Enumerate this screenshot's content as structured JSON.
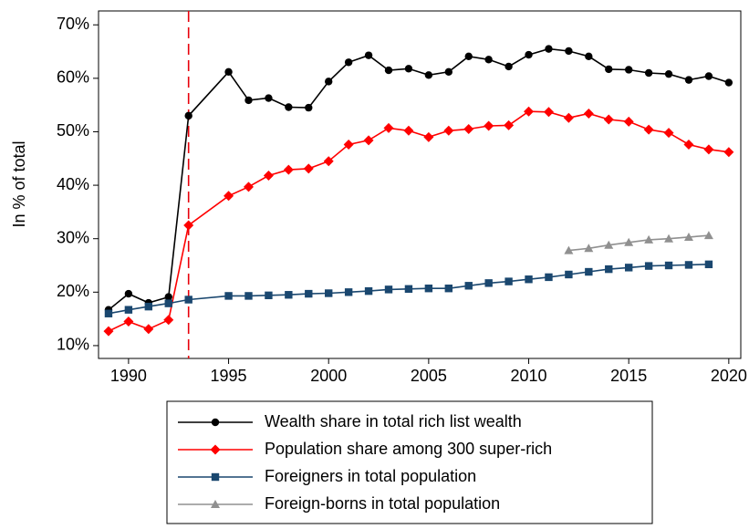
{
  "chart_data": {
    "type": "line",
    "y_label": "In % of total",
    "xlim": [
      1988.5,
      2020.6
    ],
    "xticks": [
      1990,
      1995,
      2000,
      2005,
      2010,
      2015,
      2020
    ],
    "ylim": [
      7.6,
      72.6
    ],
    "yticks": [
      {
        "value": 10,
        "label": "10%"
      },
      {
        "value": 20,
        "label": "20%"
      },
      {
        "value": 30,
        "label": "30%"
      },
      {
        "value": 40,
        "label": "40%"
      },
      {
        "value": 50,
        "label": "50%"
      },
      {
        "value": 60,
        "label": "60%"
      },
      {
        "value": 70,
        "label": "70%"
      }
    ],
    "vline": {
      "x": 1993,
      "color": "#e8000b"
    },
    "series": [
      {
        "name": "Wealth share in total rich list wealth",
        "color": "#000000",
        "marker": "circle",
        "x": [
          1989,
          1990,
          1991,
          1992,
          1993,
          1995,
          1996,
          1997,
          1998,
          1999,
          2000,
          2001,
          2002,
          2003,
          2004,
          2005,
          2006,
          2007,
          2008,
          2009,
          2010,
          2011,
          2012,
          2013,
          2014,
          2015,
          2016,
          2017,
          2018,
          2019,
          2020
        ],
        "values": [
          16.7,
          19.7,
          18.0,
          19.1,
          53.0,
          61.2,
          55.9,
          56.3,
          54.6,
          54.5,
          59.4,
          63.0,
          64.3,
          61.5,
          61.8,
          60.6,
          61.2,
          64.1,
          63.5,
          62.2,
          64.4,
          65.5,
          65.1,
          64.1,
          61.7,
          61.6,
          61.0,
          60.8,
          59.7,
          60.4,
          59.2
        ]
      },
      {
        "name": "Population share among 300 super-rich",
        "color": "#ff0000",
        "marker": "diamond",
        "x": [
          1989,
          1990,
          1991,
          1992,
          1993,
          1995,
          1996,
          1997,
          1998,
          1999,
          2000,
          2001,
          2002,
          2003,
          2004,
          2005,
          2006,
          2007,
          2008,
          2009,
          2010,
          2011,
          2012,
          2013,
          2014,
          2015,
          2016,
          2017,
          2018,
          2019,
          2020
        ],
        "values": [
          12.7,
          14.5,
          13.1,
          14.8,
          32.5,
          38.0,
          39.7,
          41.8,
          42.9,
          43.1,
          44.5,
          47.6,
          48.4,
          50.7,
          50.2,
          49.0,
          50.2,
          50.5,
          51.1,
          51.2,
          53.8,
          53.7,
          52.6,
          53.4,
          52.3,
          51.9,
          50.4,
          49.8,
          47.6,
          46.7,
          46.2
        ]
      },
      {
        "name": "Foreigners in total population",
        "color": "#1a476f",
        "marker": "square",
        "x": [
          1989,
          1990,
          1991,
          1992,
          1993,
          1995,
          1996,
          1997,
          1998,
          1999,
          2000,
          2001,
          2002,
          2003,
          2004,
          2005,
          2006,
          2007,
          2008,
          2009,
          2010,
          2011,
          2012,
          2013,
          2014,
          2015,
          2016,
          2017,
          2018,
          2019
        ],
        "values": [
          16.0,
          16.7,
          17.3,
          17.9,
          18.6,
          19.3,
          19.3,
          19.4,
          19.5,
          19.7,
          19.8,
          20.0,
          20.2,
          20.5,
          20.6,
          20.7,
          20.7,
          21.2,
          21.7,
          22.0,
          22.4,
          22.8,
          23.3,
          23.8,
          24.3,
          24.6,
          24.9,
          25.0,
          25.1,
          25.2
        ]
      },
      {
        "name": "Foreign-borns in total population",
        "color": "#909090",
        "marker": "triangle",
        "x": [
          2012,
          2013,
          2014,
          2015,
          2016,
          2017,
          2018,
          2019
        ],
        "values": [
          27.8,
          28.2,
          28.8,
          29.3,
          29.8,
          30.0,
          30.3,
          30.6
        ]
      }
    ]
  }
}
